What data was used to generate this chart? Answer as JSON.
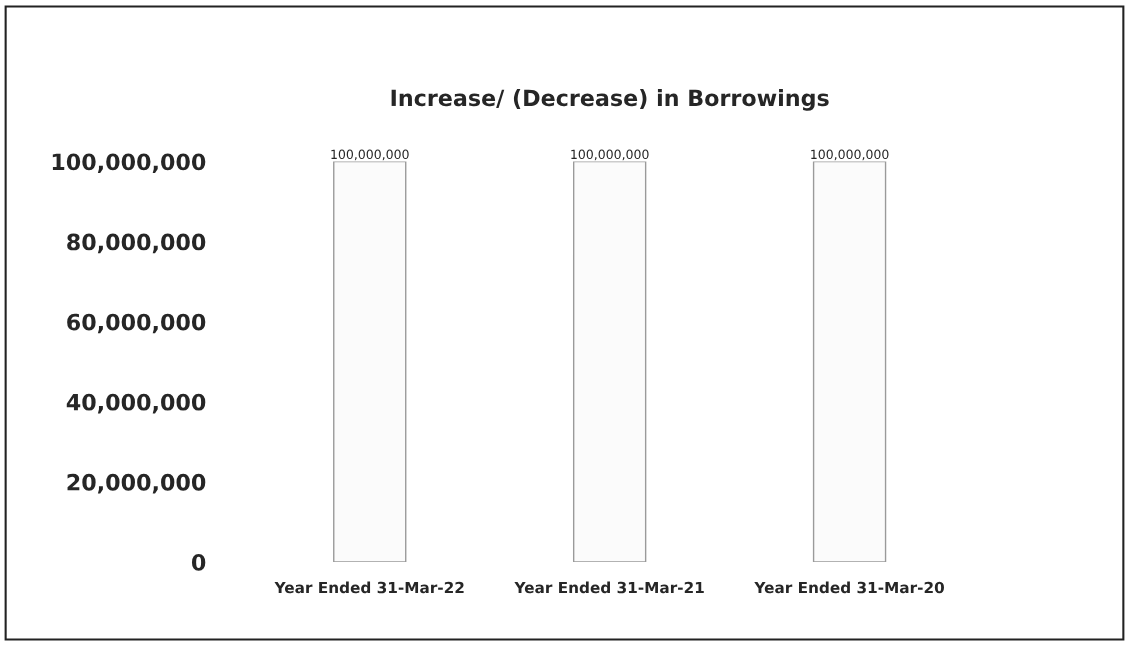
{
  "chart_data": {
    "type": "bar",
    "title": "Increase/ (Decrease) in Borrowings",
    "categories": [
      "Year Ended 31-Mar-22",
      "Year Ended 31-Mar-21",
      "Year Ended 31-Mar-20"
    ],
    "values": [
      100000000,
      100000000,
      100000000
    ],
    "color": "#fbfbfb",
    "ylim": [
      0,
      100000000
    ],
    "yticks": [
      {
        "value": 0,
        "label": "0"
      },
      {
        "value": 20000000,
        "label": "20,000,000"
      },
      {
        "value": 40000000,
        "label": "40,000,000"
      },
      {
        "value": 60000000,
        "label": "60,000,000"
      },
      {
        "value": 80000000,
        "label": "80,000,000"
      },
      {
        "value": 100000000,
        "label": "100,000,000"
      }
    ],
    "value_labels": [
      "100,000,000",
      "100,000,000",
      "100,000,000"
    ],
    "grid": false,
    "legend": false
  }
}
